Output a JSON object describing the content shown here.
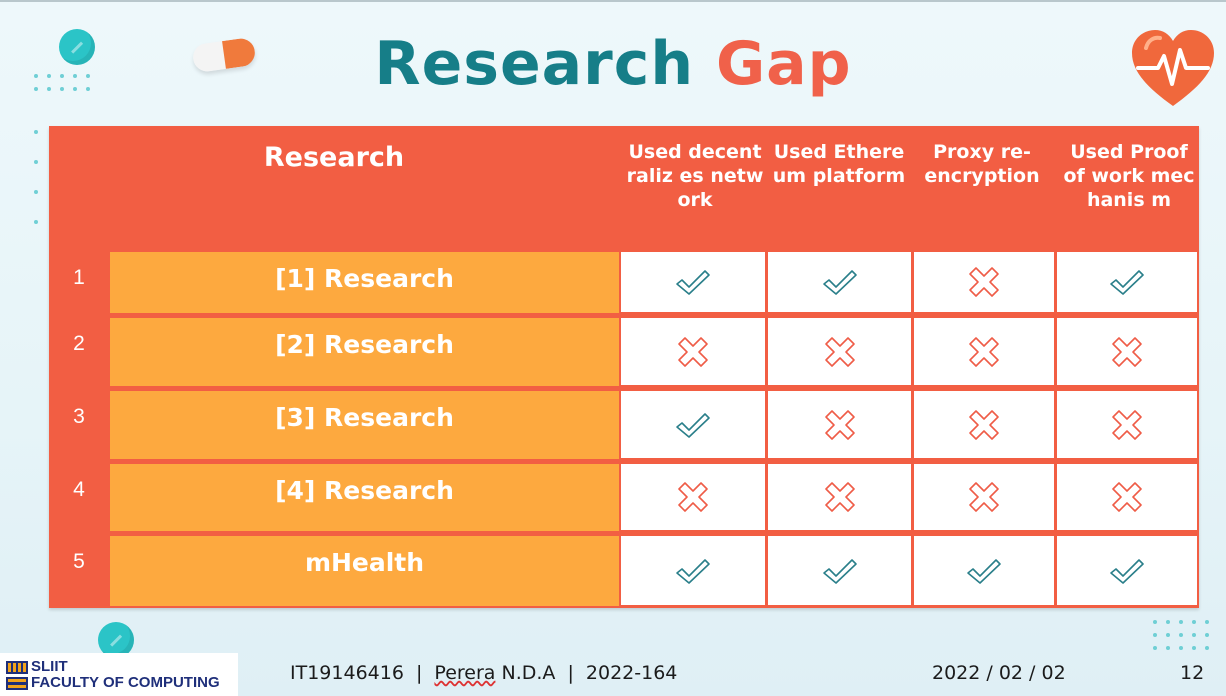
{
  "slide": {
    "title_part1": "Research",
    "title_part2": "Gap",
    "accent_teal": "#167e88",
    "accent_coral": "#f0614a"
  },
  "table": {
    "header": {
      "research": "Research",
      "columns": [
        "Used decentraliz es network",
        "Used Ethereum platform",
        "Proxy re-encryption",
        "Used Proof of work mechanis m"
      ]
    },
    "rows": [
      {
        "num": "1",
        "label": "[1] Research",
        "marks": [
          "check",
          "check",
          "cross",
          "check"
        ]
      },
      {
        "num": "2",
        "label": "[2] Research",
        "marks": [
          "cross",
          "cross",
          "cross",
          "cross"
        ]
      },
      {
        "num": "3",
        "label": "[3] Research",
        "marks": [
          "check",
          "cross",
          "cross",
          "cross"
        ]
      },
      {
        "num": "4",
        "label": "[4] Research",
        "marks": [
          "cross",
          "cross",
          "cross",
          "cross"
        ]
      },
      {
        "num": "5",
        "label": "mHealth",
        "marks": [
          "check",
          "check",
          "check",
          "check"
        ]
      }
    ]
  },
  "footer": {
    "logo_line1": "SLIIT",
    "logo_line2": "FACULTY OF COMPUTING",
    "student_id": "IT19146416",
    "sep": "|",
    "name_underlined": "Perera",
    "name_rest": " N.D.A",
    "group": "2022-164",
    "date": "2022 / 02 / 02",
    "page_number": "12"
  },
  "icons": [
    "pill-circle-icon",
    "capsule-icon",
    "heart-pulse-icon",
    "check-icon",
    "cross-icon"
  ]
}
